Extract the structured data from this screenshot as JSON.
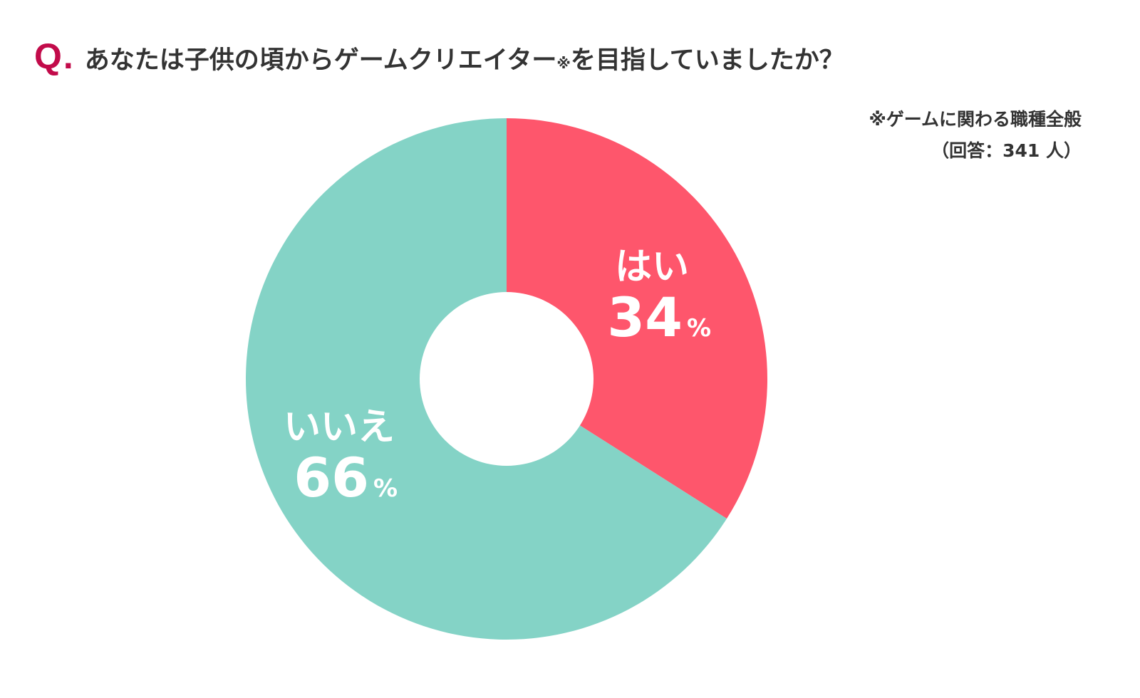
{
  "question": {
    "marker": "Q.",
    "text": "あなたは子供の頃からゲームクリエイター",
    "note_mark": "※",
    "text_after": "を目指していましたか？"
  },
  "note": {
    "line1": "※ゲームに関わる職種全般",
    "line2": "（回答：341 人）"
  },
  "chart_data": {
    "type": "pie",
    "donut": true,
    "start": "top",
    "direction": "clockwise",
    "slices": [
      {
        "label": "はい",
        "value": 34,
        "value_text": "34",
        "unit": "%",
        "color": "#fe566c"
      },
      {
        "label": "いいえ",
        "value": 66,
        "value_text": "66",
        "unit": "%",
        "color": "#84d3c6"
      }
    ],
    "label_color": "#ffffff",
    "hole_color": "#ffffff"
  }
}
